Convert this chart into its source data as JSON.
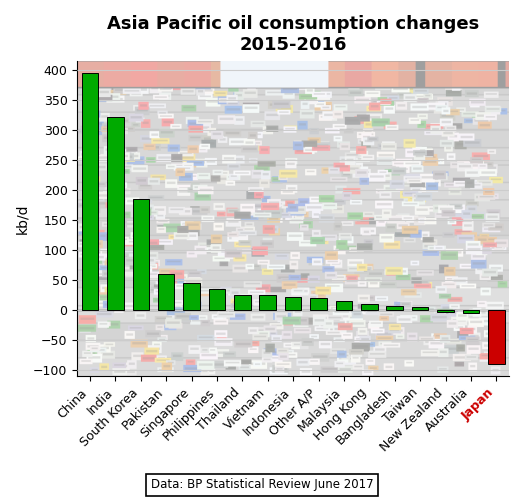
{
  "title": "Asia Pacific oil consumption changes\n2015-2016",
  "ylabel": "kb/d",
  "source_text": "Data: BP Statistical Review June 2017",
  "categories": [
    "China",
    "India",
    "South Korea",
    "Pakistan",
    "Singapore",
    "Philippines",
    "Thailand",
    "Vietnam",
    "Indonesia",
    "Other A/P",
    "Malaysia",
    "Hong Kong",
    "Bangladesh",
    "Taiwan",
    "New Zealand",
    "Australia",
    "Japan"
  ],
  "values": [
    395,
    322,
    185,
    60,
    46,
    35,
    26,
    25,
    22,
    20,
    15,
    11,
    7,
    6,
    -2,
    -5,
    -90
  ],
  "bar_colors": [
    "#00aa00",
    "#00aa00",
    "#00aa00",
    "#00aa00",
    "#00aa00",
    "#00aa00",
    "#00aa00",
    "#00aa00",
    "#00aa00",
    "#00aa00",
    "#00aa00",
    "#00aa00",
    "#00aa00",
    "#00aa00",
    "#00aa00",
    "#00aa00",
    "#cc0000"
  ],
  "ylim": [
    -110,
    415
  ],
  "yticks": [
    -100,
    -50,
    0,
    50,
    100,
    150,
    200,
    250,
    300,
    350,
    400
  ],
  "background_color": "#ffffff",
  "bg_alpha": 0.38,
  "title_fontsize": 13,
  "axis_label_fontsize": 10,
  "tick_fontsize": 9,
  "japan_label_color": "#cc0000",
  "grid_color": "#cccccc",
  "bar_edge_color": "black",
  "bar_linewidth": 0.7,
  "bar_width": 0.65
}
